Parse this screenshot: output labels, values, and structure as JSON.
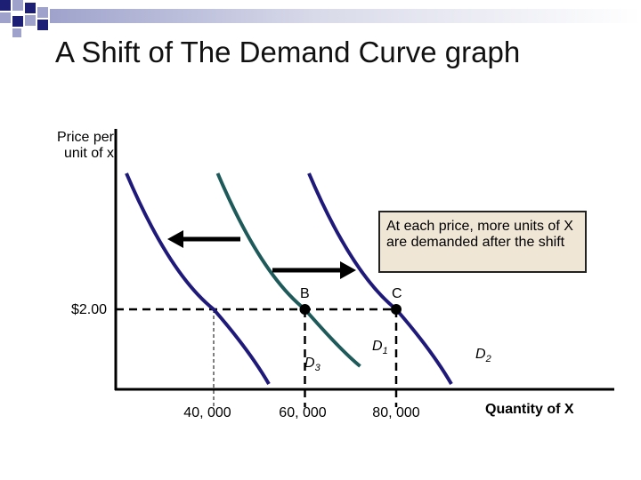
{
  "title": "A Shift of The Demand Curve graph",
  "colors": {
    "decor_dark": "#1c1f73",
    "decor_light": "#9fa3cc",
    "curve_outer": "#1f1a7a",
    "curve_middle": "#1f5a5a",
    "annotation_bg": "#efe6d6"
  },
  "chart_data": {
    "type": "line",
    "ylabel_line1": "Price per",
    "ylabel_line2": "unit of x",
    "xlabel": "Quantity of X",
    "price_tick": "$2.00",
    "x_ticks": [
      "40, 000",
      "60, 000",
      "80, 000"
    ],
    "x_tick_values": [
      40000,
      60000,
      80000
    ],
    "price_value": 2.0,
    "series": [
      {
        "name": "D",
        "subscript": "3",
        "intersect_quantity": 40000
      },
      {
        "name": "D",
        "subscript": "1",
        "intersect_quantity": 60000
      },
      {
        "name": "D",
        "subscript": "2",
        "intersect_quantity": 80000
      }
    ],
    "points": [
      {
        "label": "B",
        "quantity": 60000,
        "price": 2.0
      },
      {
        "label": "C",
        "quantity": 80000,
        "price": 2.0
      }
    ],
    "annotation": "At each price, more units of X are demanded after the shift"
  }
}
